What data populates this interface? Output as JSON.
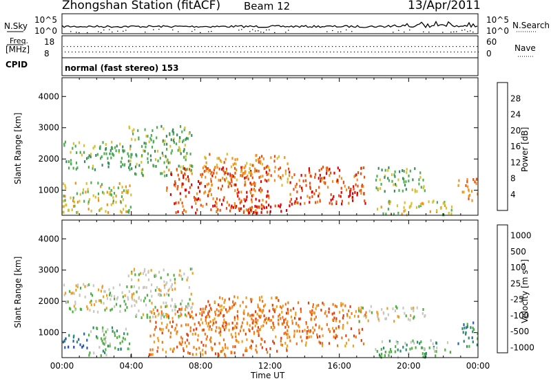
{
  "header": {
    "station": "Zhongshan Station (fitACF)",
    "beam": "Beam 12",
    "date": "13/Apr/2011"
  },
  "noise_panel": {
    "left_label": "N.Sky",
    "right_label": "N.Search",
    "left_ticks": [
      "10^5",
      "10^0"
    ],
    "right_ticks": [
      "10^5",
      "10^0"
    ]
  },
  "freq_panel": {
    "left_label_top": "Freq.",
    "left_label_bottom": "[MHz]",
    "left_ticks": [
      "18",
      "8"
    ],
    "right_label": "Nave",
    "right_ticks": [
      "60",
      "0"
    ]
  },
  "cpid": {
    "label": "CPID",
    "mode": "normal (fast stereo) 153"
  },
  "x_axis": {
    "title": "Time UT",
    "ticks": [
      "00:00",
      "04:00",
      "08:00",
      "12:00",
      "16:00",
      "20:00",
      "00:00"
    ]
  },
  "colors": {
    "power": [
      "#1111ee",
      "#2a5fb0",
      "#3a8a5e",
      "#4caf50",
      "#d8c030",
      "#f09020",
      "#e85010",
      "#e00000"
    ],
    "velocity": [
      "#e00000",
      "#e04010",
      "#f07818",
      "#f0a020",
      "#c8c8c0",
      "#4cb040",
      "#2a8a6a",
      "#2a5fb0",
      "#2040c0"
    ]
  },
  "chart_data": [
    {
      "type": "heatmap",
      "name_panel": "power",
      "ylabel": "Slant Range [km]",
      "yticks": [
        "1000",
        "2000",
        "3000",
        "4000"
      ],
      "ylim": [
        200,
        4600
      ],
      "xlim": [
        0,
        24
      ],
      "colorbar": {
        "label": "Power [dB]",
        "ticks": [
          "4",
          "8",
          "12",
          "16",
          "20",
          "24",
          "28"
        ],
        "range": [
          0,
          30
        ]
      },
      "regions": [
        {
          "t0": 0.0,
          "t1": 4.0,
          "r0": 1700,
          "r1": 2600,
          "level": 3
        },
        {
          "t0": 0.0,
          "t1": 4.0,
          "r0": 300,
          "r1": 1300,
          "level": 4
        },
        {
          "t0": 3.8,
          "t1": 7.5,
          "r0": 1500,
          "r1": 3100,
          "level": 3
        },
        {
          "t0": 6.0,
          "t1": 12.0,
          "r0": 300,
          "r1": 1800,
          "level": 6
        },
        {
          "t0": 8.0,
          "t1": 13.0,
          "r0": 1200,
          "r1": 2200,
          "level": 5
        },
        {
          "t0": 9.5,
          "t1": 13.5,
          "r0": 300,
          "r1": 600,
          "level": 7
        },
        {
          "t0": 13.0,
          "t1": 17.5,
          "r0": 600,
          "r1": 1800,
          "level": 6
        },
        {
          "t0": 16.5,
          "t1": 17.5,
          "r0": 800,
          "r1": 1300,
          "level": 7
        },
        {
          "t0": 18.0,
          "t1": 21.0,
          "r0": 1000,
          "r1": 1800,
          "level": 3
        },
        {
          "t0": 18.0,
          "t1": 22.5,
          "r0": 250,
          "r1": 700,
          "level": 4
        },
        {
          "t0": 22.8,
          "t1": 24.0,
          "r0": 700,
          "r1": 1400,
          "level": 5
        }
      ]
    },
    {
      "type": "heatmap",
      "name_panel": "velocity",
      "ylabel": "Slant Range [km]",
      "yticks": [
        "1000",
        "2000",
        "3000",
        "4000"
      ],
      "ylim": [
        200,
        4600
      ],
      "xlim": [
        0,
        24
      ],
      "colorbar": {
        "label": "Velocity [m s⁻¹]",
        "ticks": [
          "1000",
          "500",
          "100",
          "25",
          "-25",
          "-100",
          "-500",
          "-1000"
        ],
        "range": [
          -1000,
          1000
        ]
      },
      "regions": [
        {
          "t0": 0.0,
          "t1": 4.0,
          "r0": 1700,
          "r1": 2600,
          "level": 4
        },
        {
          "t0": 0.0,
          "t1": 1.5,
          "r0": 500,
          "r1": 1000,
          "level": 7
        },
        {
          "t0": 1.5,
          "t1": 4.0,
          "r0": 300,
          "r1": 1200,
          "level": 5
        },
        {
          "t0": 3.8,
          "t1": 7.5,
          "r0": 1500,
          "r1": 3100,
          "level": 4
        },
        {
          "t0": 5.0,
          "t1": 13.0,
          "r0": 300,
          "r1": 1800,
          "level": 2
        },
        {
          "t0": 8.0,
          "t1": 13.0,
          "r0": 1200,
          "r1": 2200,
          "level": 2
        },
        {
          "t0": 13.0,
          "t1": 17.5,
          "r0": 600,
          "r1": 2000,
          "level": 2
        },
        {
          "t0": 17.0,
          "t1": 21.0,
          "r0": 1400,
          "r1": 1900,
          "level": 4
        },
        {
          "t0": 18.0,
          "t1": 22.5,
          "r0": 250,
          "r1": 800,
          "level": 5
        },
        {
          "t0": 22.8,
          "t1": 24.0,
          "r0": 600,
          "r1": 1400,
          "level": 6
        }
      ]
    }
  ]
}
